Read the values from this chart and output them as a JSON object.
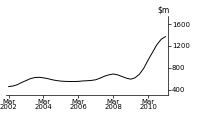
{
  "ylim": [
    300,
    1750
  ],
  "yticks": [
    400,
    800,
    1200,
    1600
  ],
  "ytick_labels": [
    "400",
    "800",
    "1200",
    "1600"
  ],
  "xtick_labels": [
    "Mar\n2002",
    "Mar\n2004",
    "Mar\n2006",
    "Mar\n2008",
    "Mar\n2010"
  ],
  "line_color": "#000000",
  "background_color": "#ffffff",
  "x": [
    0,
    1,
    2,
    3,
    4,
    5,
    6,
    7,
    8,
    9,
    10,
    11,
    12,
    13,
    14,
    15,
    16,
    17,
    18,
    19,
    20,
    21,
    22,
    23,
    24,
    25,
    26,
    27,
    28,
    29,
    30,
    31,
    32,
    33,
    34,
    35,
    36
  ],
  "y": [
    455,
    465,
    490,
    530,
    565,
    600,
    620,
    625,
    615,
    600,
    580,
    565,
    555,
    550,
    548,
    548,
    550,
    558,
    562,
    568,
    580,
    610,
    645,
    670,
    685,
    670,
    640,
    610,
    590,
    615,
    680,
    790,
    940,
    1080,
    1220,
    1320,
    1370
  ],
  "xtick_positions": [
    0,
    8,
    16,
    24,
    32
  ]
}
